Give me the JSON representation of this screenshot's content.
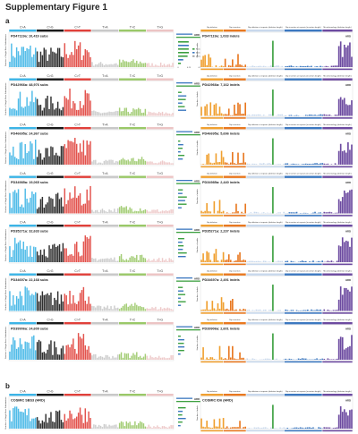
{
  "figure": {
    "title": "Supplementary Figure 1",
    "panel_a": "a",
    "panel_b": "b"
  },
  "chart_data": {
    "type": "bar",
    "sbs_groups": [
      "C>A",
      "C>G",
      "C>T",
      "T>A",
      "T>C",
      "T>G"
    ],
    "sbs_colors": [
      "#3cb4e6",
      "#1a1a1a",
      "#e0403a",
      "#c8c8c8",
      "#9ac868",
      "#ecc4c4"
    ],
    "id_groups": [
      "1bp deletion",
      "1bp insertion",
      "2bp deletion at repeats (deletion length)",
      "2bp insertion at repeats (insertion length)",
      "Microhomology (deletion length)"
    ],
    "id_colors": [
      "#f0a030",
      "#e87820",
      "#c8d8ec",
      "#3c78c0",
      "#6c4aa0"
    ],
    "sbs_ylabel": "Number of Single Base Substitutions",
    "id_ylabel": "Number of indels",
    "hrd_label": "HRD",
    "inset_legend": [
      "Seen in tumour/tissue",
      "Seen in germline tissue",
      "Unclassified"
    ],
    "inset_xticks": [
      "0",
      "0.25",
      "0.5",
      "0.75",
      "1.0"
    ],
    "samples_a": [
      {
        "sbs_label": "PD47119a: 10,419 subs",
        "id_label": "PD47119a: 1,033 indels",
        "inset": true
      },
      {
        "sbs_label": "PD42966a: 48,976 subs",
        "id_label": "PD42966a: 7,162 indels",
        "inset": false
      },
      {
        "sbs_label": "PD46695a: 24,367 subs",
        "id_label": "PD46695a: 5,696 indels",
        "inset": false
      },
      {
        "sbs_label": "PD34985a: 19,065 subs",
        "id_label": "PD34985a: 2,440 indels",
        "inset": false
      },
      {
        "sbs_label": "PD35271a: 32,633 subs",
        "id_label": "PD35271a: 2,237 indels",
        "inset": false
      },
      {
        "sbs_label": "PD34697a: 22,168 subs",
        "id_label": "PD34697a: 2,491 indels",
        "inset": false
      },
      {
        "sbs_label": "PD39906a: 24,609 subs",
        "id_label": "PD39906a: 2,601 indels",
        "inset": false
      }
    ],
    "panel_b": {
      "sbs_label": "COSMIC SBS3 (HRD)",
      "id_label": "COSMIC ID6 (HRD)"
    }
  }
}
